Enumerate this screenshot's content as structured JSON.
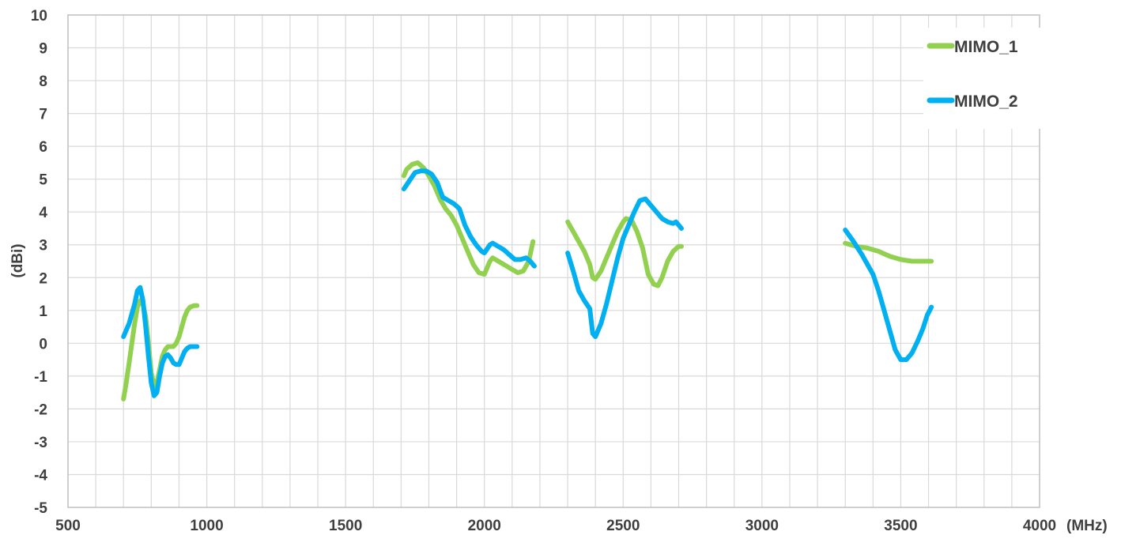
{
  "chart_data": {
    "type": "line",
    "title": "",
    "xlabel": "(MHz)",
    "ylabel": "(dBi)",
    "xlim": [
      500,
      4000
    ],
    "ylim": [
      -5,
      10
    ],
    "x_ticks": [
      500,
      1000,
      1500,
      2000,
      2500,
      3000,
      3500,
      4000
    ],
    "y_ticks": [
      -5,
      -4,
      -3,
      -2,
      -1,
      0,
      1,
      2,
      3,
      4,
      5,
      6,
      7,
      8,
      9,
      10
    ],
    "x_minor_step": 100,
    "grid": true,
    "legend_position": "top-right",
    "series": [
      {
        "name": "MIMO_1",
        "color": "#92d050",
        "segments": [
          [
            [
              700,
              -1.7
            ],
            [
              710,
              -1.2
            ],
            [
              720,
              -0.6
            ],
            [
              730,
              0.0
            ],
            [
              740,
              0.6
            ],
            [
              750,
              1.1
            ],
            [
              760,
              1.3
            ],
            [
              770,
              1.2
            ],
            [
              780,
              0.8
            ],
            [
              790,
              0.0
            ],
            [
              800,
              -0.9
            ],
            [
              810,
              -1.3
            ],
            [
              820,
              -1.2
            ],
            [
              830,
              -0.8
            ],
            [
              840,
              -0.4
            ],
            [
              850,
              -0.2
            ],
            [
              860,
              -0.1
            ],
            [
              870,
              -0.1
            ],
            [
              880,
              -0.1
            ],
            [
              890,
              0.0
            ],
            [
              900,
              0.2
            ],
            [
              910,
              0.5
            ],
            [
              920,
              0.8
            ],
            [
              930,
              1.0
            ],
            [
              940,
              1.1
            ],
            [
              955,
              1.15
            ],
            [
              965,
              1.15
            ]
          ],
          [
            [
              1710,
              5.1
            ],
            [
              1720,
              5.3
            ],
            [
              1740,
              5.45
            ],
            [
              1760,
              5.5
            ],
            [
              1780,
              5.35
            ],
            [
              1800,
              5.1
            ],
            [
              1820,
              4.8
            ],
            [
              1840,
              4.4
            ],
            [
              1860,
              4.1
            ],
            [
              1880,
              3.9
            ],
            [
              1900,
              3.6
            ],
            [
              1920,
              3.2
            ],
            [
              1940,
              2.8
            ],
            [
              1960,
              2.4
            ],
            [
              1980,
              2.15
            ],
            [
              2000,
              2.1
            ],
            [
              2020,
              2.5
            ],
            [
              2030,
              2.6
            ],
            [
              2050,
              2.5
            ],
            [
              2080,
              2.35
            ],
            [
              2100,
              2.25
            ],
            [
              2120,
              2.15
            ],
            [
              2140,
              2.2
            ],
            [
              2160,
              2.5
            ],
            [
              2175,
              3.1
            ]
          ],
          [
            [
              2300,
              3.7
            ],
            [
              2320,
              3.4
            ],
            [
              2340,
              3.1
            ],
            [
              2360,
              2.8
            ],
            [
              2380,
              2.4
            ],
            [
              2390,
              2.0
            ],
            [
              2400,
              1.95
            ],
            [
              2420,
              2.2
            ],
            [
              2440,
              2.6
            ],
            [
              2460,
              3.0
            ],
            [
              2480,
              3.4
            ],
            [
              2500,
              3.7
            ],
            [
              2510,
              3.8
            ],
            [
              2530,
              3.75
            ],
            [
              2550,
              3.4
            ],
            [
              2570,
              2.9
            ],
            [
              2590,
              2.1
            ],
            [
              2610,
              1.8
            ],
            [
              2625,
              1.75
            ],
            [
              2640,
              2.0
            ],
            [
              2660,
              2.5
            ],
            [
              2680,
              2.8
            ],
            [
              2700,
              2.95
            ],
            [
              2710,
              2.95
            ]
          ],
          [
            [
              3300,
              3.05
            ],
            [
              3340,
              2.95
            ],
            [
              3380,
              2.9
            ],
            [
              3420,
              2.8
            ],
            [
              3460,
              2.65
            ],
            [
              3500,
              2.55
            ],
            [
              3540,
              2.5
            ],
            [
              3580,
              2.5
            ],
            [
              3610,
              2.5
            ]
          ]
        ]
      },
      {
        "name": "MIMO_2",
        "color": "#00b0f0",
        "segments": [
          [
            [
              700,
              0.2
            ],
            [
              710,
              0.4
            ],
            [
              720,
              0.6
            ],
            [
              730,
              0.9
            ],
            [
              740,
              1.2
            ],
            [
              750,
              1.6
            ],
            [
              760,
              1.7
            ],
            [
              770,
              1.3
            ],
            [
              780,
              0.5
            ],
            [
              790,
              -0.4
            ],
            [
              800,
              -1.2
            ],
            [
              810,
              -1.6
            ],
            [
              820,
              -1.5
            ],
            [
              830,
              -1.0
            ],
            [
              840,
              -0.6
            ],
            [
              850,
              -0.4
            ],
            [
              860,
              -0.35
            ],
            [
              870,
              -0.45
            ],
            [
              880,
              -0.6
            ],
            [
              890,
              -0.65
            ],
            [
              900,
              -0.65
            ],
            [
              910,
              -0.45
            ],
            [
              920,
              -0.25
            ],
            [
              930,
              -0.15
            ],
            [
              940,
              -0.1
            ],
            [
              955,
              -0.1
            ],
            [
              965,
              -0.1
            ]
          ],
          [
            [
              1710,
              4.7
            ],
            [
              1730,
              4.95
            ],
            [
              1750,
              5.2
            ],
            [
              1770,
              5.25
            ],
            [
              1790,
              5.25
            ],
            [
              1810,
              5.15
            ],
            [
              1830,
              4.9
            ],
            [
              1850,
              4.45
            ],
            [
              1870,
              4.35
            ],
            [
              1890,
              4.25
            ],
            [
              1910,
              4.1
            ],
            [
              1930,
              3.6
            ],
            [
              1950,
              3.25
            ],
            [
              1970,
              3.0
            ],
            [
              1990,
              2.8
            ],
            [
              2000,
              2.75
            ],
            [
              2020,
              3.0
            ],
            [
              2030,
              3.05
            ],
            [
              2050,
              2.95
            ],
            [
              2070,
              2.85
            ],
            [
              2090,
              2.7
            ],
            [
              2110,
              2.55
            ],
            [
              2130,
              2.55
            ],
            [
              2150,
              2.6
            ],
            [
              2165,
              2.5
            ],
            [
              2180,
              2.35
            ]
          ],
          [
            [
              2300,
              2.75
            ],
            [
              2320,
              2.2
            ],
            [
              2340,
              1.6
            ],
            [
              2360,
              1.3
            ],
            [
              2380,
              1.05
            ],
            [
              2390,
              0.3
            ],
            [
              2400,
              0.2
            ],
            [
              2420,
              0.6
            ],
            [
              2440,
              1.2
            ],
            [
              2460,
              1.9
            ],
            [
              2480,
              2.6
            ],
            [
              2500,
              3.2
            ],
            [
              2520,
              3.6
            ],
            [
              2540,
              4.0
            ],
            [
              2560,
              4.35
            ],
            [
              2580,
              4.4
            ],
            [
              2600,
              4.2
            ],
            [
              2620,
              4.0
            ],
            [
              2640,
              3.8
            ],
            [
              2660,
              3.7
            ],
            [
              2680,
              3.65
            ],
            [
              2690,
              3.7
            ],
            [
              2700,
              3.6
            ],
            [
              2710,
              3.5
            ]
          ],
          [
            [
              3300,
              3.45
            ],
            [
              3330,
              3.1
            ],
            [
              3360,
              2.7
            ],
            [
              3400,
              2.1
            ],
            [
              3420,
              1.6
            ],
            [
              3440,
              1.0
            ],
            [
              3460,
              0.4
            ],
            [
              3480,
              -0.2
            ],
            [
              3500,
              -0.5
            ],
            [
              3520,
              -0.5
            ],
            [
              3540,
              -0.3
            ],
            [
              3560,
              0.05
            ],
            [
              3580,
              0.45
            ],
            [
              3595,
              0.85
            ],
            [
              3610,
              1.1
            ]
          ]
        ]
      }
    ]
  }
}
